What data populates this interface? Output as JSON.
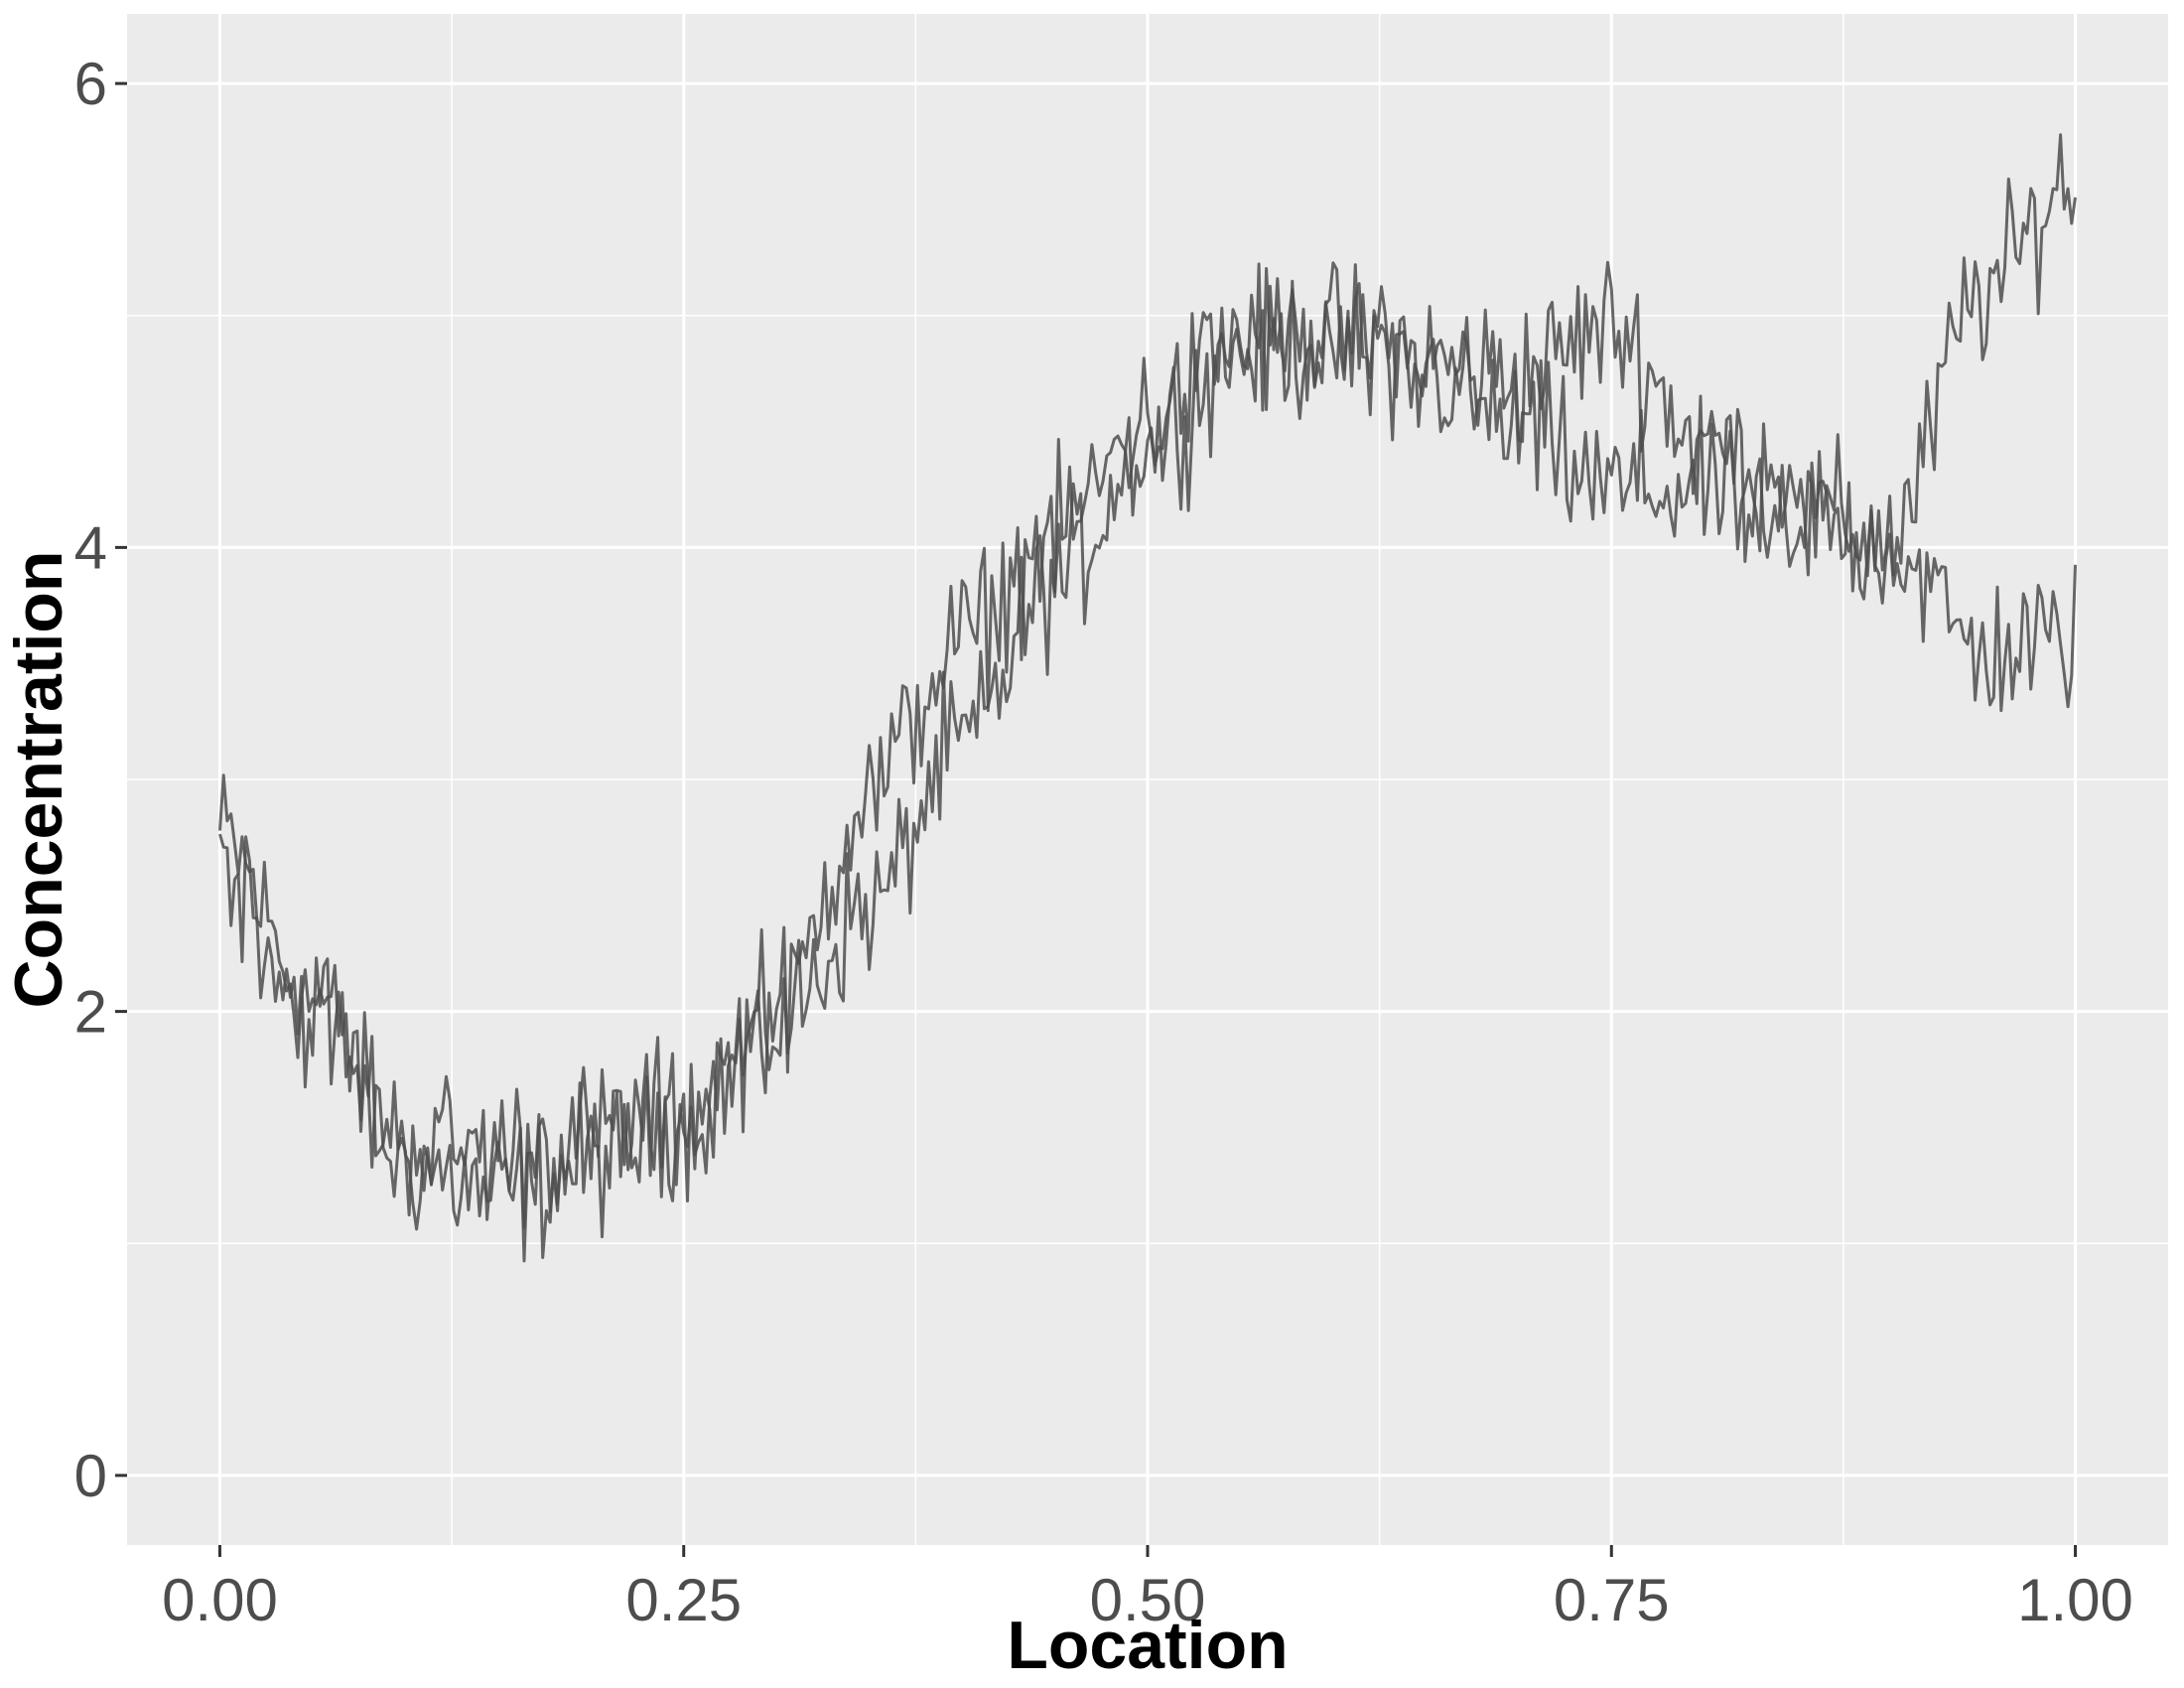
{
  "chart_data": {
    "type": "line",
    "title": "",
    "xlabel": "Location",
    "ylabel": "Concentration",
    "xlim": [
      -0.05,
      1.05
    ],
    "ylim": [
      -0.3,
      6.3
    ],
    "x_ticks": [
      0.0,
      0.25,
      0.5,
      0.75,
      1.0
    ],
    "x_tick_labels": [
      "0.00",
      "0.25",
      "0.50",
      "0.75",
      "1.00"
    ],
    "y_ticks": [
      0,
      2,
      4,
      6
    ],
    "y_tick_labels": [
      "0",
      "2",
      "4",
      "6"
    ],
    "grid": true,
    "legend": "none",
    "colors": {
      "panel": "#ebebeb",
      "grid": "#ffffff",
      "line": "#4d4d4d"
    },
    "series": [
      {
        "x": [
          0.0,
          0.05,
          0.1,
          0.15,
          0.2,
          0.25,
          0.3,
          0.35,
          0.4,
          0.45,
          0.5,
          0.55,
          0.6,
          0.65,
          0.7,
          0.75,
          0.8,
          0.85,
          0.9,
          0.95,
          1.0
        ],
        "values": [
          2.75,
          2.05,
          1.35,
          1.2,
          1.35,
          1.55,
          1.95,
          2.45,
          3.15,
          3.85,
          4.45,
          4.85,
          4.9,
          4.8,
          4.75,
          4.95,
          4.45,
          4.15,
          4.05,
          5.1,
          5.6
        ],
        "noise": 0.2
      },
      {
        "x": [
          0.0,
          0.05,
          0.1,
          0.15,
          0.2,
          0.25,
          0.3,
          0.35,
          0.4,
          0.45,
          0.5,
          0.55,
          0.6,
          0.65,
          0.7,
          0.75,
          0.8,
          0.85,
          0.9,
          0.95,
          1.0
        ],
        "values": [
          2.65,
          2.0,
          1.45,
          1.4,
          1.45,
          1.55,
          2.0,
          2.95,
          3.6,
          4.05,
          4.55,
          4.9,
          4.85,
          4.75,
          4.5,
          4.25,
          4.25,
          4.15,
          4.0,
          3.55,
          3.6
        ],
        "noise": 0.2
      }
    ]
  }
}
